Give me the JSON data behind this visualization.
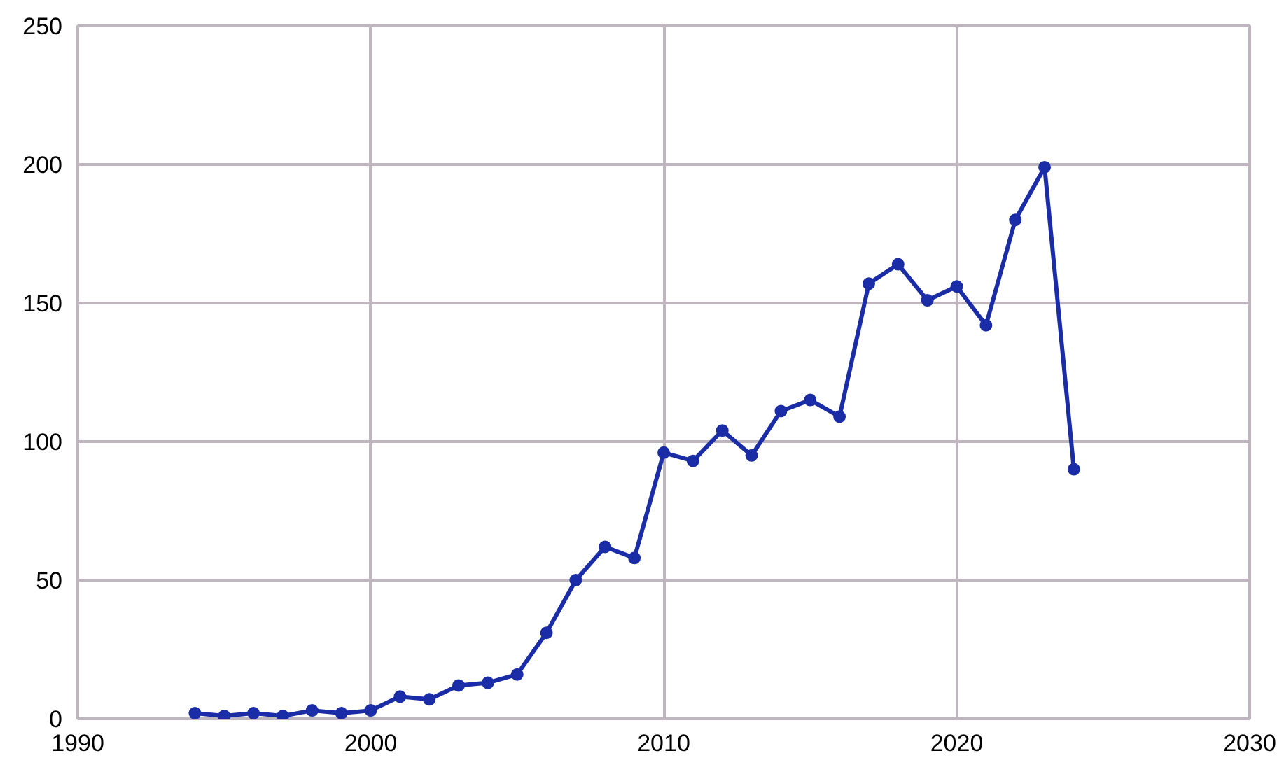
{
  "chart_data": {
    "type": "line",
    "x": [
      1994,
      1995,
      1996,
      1997,
      1998,
      1999,
      2000,
      2001,
      2002,
      2003,
      2004,
      2005,
      2006,
      2007,
      2008,
      2009,
      2010,
      2011,
      2012,
      2013,
      2014,
      2015,
      2016,
      2017,
      2018,
      2019,
      2020,
      2021,
      2022,
      2023,
      2024
    ],
    "series": [
      {
        "color": "#1a2ca6",
        "values": [
          2,
          1,
          2,
          1,
          3,
          2,
          3,
          8,
          7,
          12,
          13,
          16,
          31,
          50,
          62,
          58,
          96,
          93,
          104,
          95,
          111,
          115,
          109,
          157,
          164,
          151,
          156,
          142,
          180,
          199,
          90
        ]
      }
    ],
    "xlim": [
      1990,
      2030
    ],
    "xticks": [
      1990,
      2000,
      2010,
      2020,
      2030
    ],
    "ylim": [
      0,
      250
    ],
    "yticks": [
      0,
      50,
      100,
      150,
      200,
      250
    ],
    "grid": true,
    "marker": "circle",
    "line_style": "solid"
  }
}
